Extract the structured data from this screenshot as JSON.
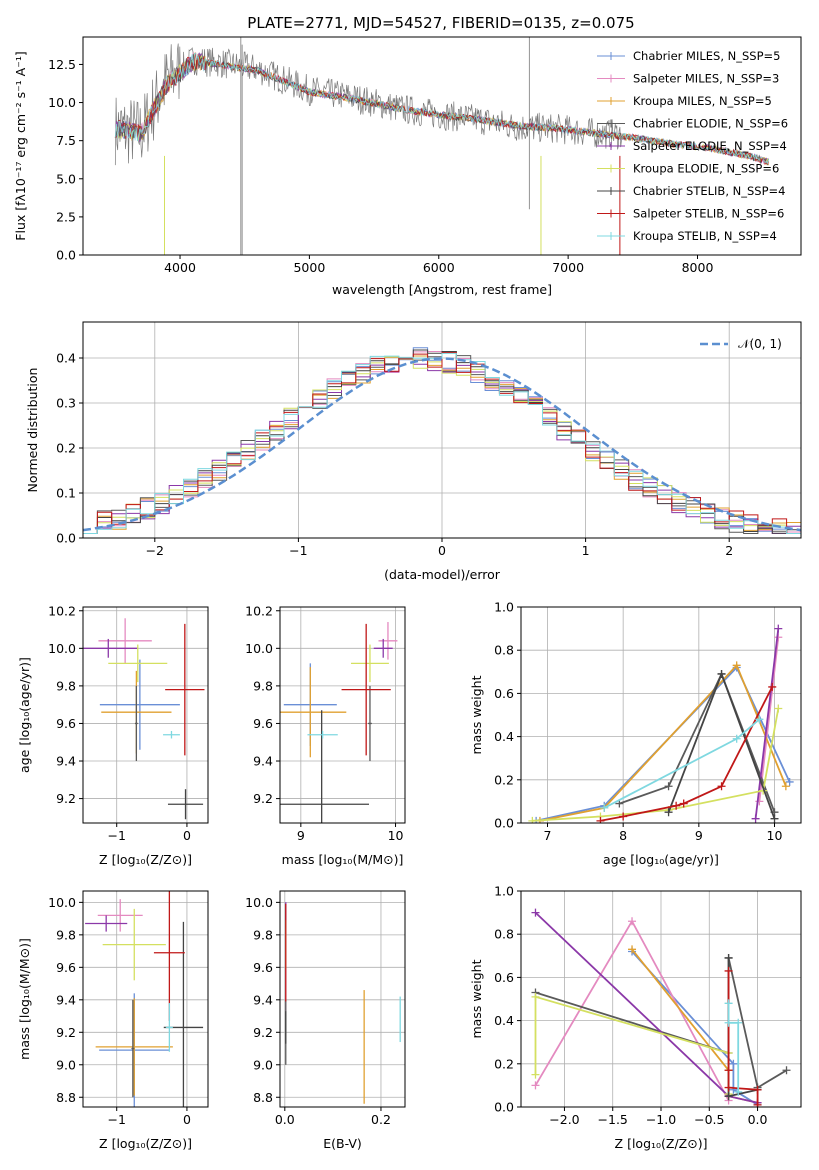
{
  "figure": {
    "title": "PLATE=2771, MJD=54527, FIBERID=0135, z=0.075"
  },
  "colors": {
    "series": [
      "#6a8fd6",
      "#e48ac0",
      "#e0a030",
      "#5a5a5a",
      "#8b38a8",
      "#d4e060",
      "#444444",
      "#c01818",
      "#7fd8e0"
    ],
    "gaussian": "#5b8fd0",
    "grid": "#b0b0b0"
  },
  "chart_data": [
    {
      "id": "spectrum",
      "type": "line",
      "xlabel": "wavelength [Angstrom, rest frame]",
      "ylabel": "Flux [fλ10⁻¹⁷ erg cm⁻² s⁻¹ A⁻¹]",
      "xlim": [
        3250,
        8800
      ],
      "ylim": [
        0,
        14.3
      ],
      "xticks": [
        "4000",
        "5000",
        "6000",
        "7000",
        "8000"
      ],
      "yticks": [
        "0.0",
        "2.5",
        "5.0",
        "7.5",
        "10.0",
        "12.5"
      ],
      "grid": false,
      "legend_position": "upper right",
      "legend": [
        "Chabrier MILES, N_SSP=5",
        "Salpeter MILES, N_SSP=3",
        "Kroupa MILES, N_SSP=5",
        "Chabrier ELODIE, N_SSP=6",
        "Salpeter ELODIE, N_SSP=4",
        "Kroupa ELODIE, N_SSP=6",
        "Chabrier STELIB, N_SSP=4",
        "Salpeter STELIB, N_SSP=6",
        "Kroupa STELIB, N_SSP=4"
      ],
      "data_envelope": {
        "x": [
          3500,
          3700,
          3900,
          4100,
          4300,
          4600,
          5000,
          5300,
          5700,
          6000,
          6300,
          6600,
          6900,
          7200,
          7400
        ],
        "y": [
          8.3,
          8.0,
          11.5,
          12.8,
          12.6,
          12.2,
          10.8,
          10.4,
          9.6,
          9.2,
          8.9,
          8.4,
          8.3,
          8.0,
          7.9
        ]
      },
      "model_envelope": {
        "x": [
          3500,
          3700,
          3900,
          4100,
          4300,
          4600,
          5000,
          5300,
          5700,
          6000,
          6300,
          6600,
          6900,
          7200,
          7500,
          7800,
          8100,
          8400,
          8550
        ],
        "y": [
          8.3,
          8.0,
          11.2,
          12.7,
          12.5,
          12.1,
          10.7,
          10.3,
          9.6,
          9.2,
          8.9,
          8.5,
          8.3,
          8.0,
          7.7,
          7.3,
          7.0,
          6.5,
          6.1
        ]
      }
    },
    {
      "id": "residual_hist",
      "type": "line",
      "xlabel": "(data-model)/error",
      "ylabel": "Normed distribution",
      "xlim": [
        -2.5,
        2.5
      ],
      "ylim": [
        0,
        0.48
      ],
      "xticks": [
        "−2",
        "−1",
        "0",
        "1",
        "2"
      ],
      "yticks": [
        "0.0",
        "0.1",
        "0.2",
        "0.3",
        "0.4"
      ],
      "grid": true,
      "legend_position": "upper right",
      "legend": [
        "𝒩(0, 1)"
      ],
      "bin_width": 0.1
    },
    {
      "id": "z_vs_age",
      "type": "scatter",
      "xlabel": "Z [log₁₀(Z/Z⊙)]",
      "ylabel": "age  [log₁₀(age/yr)]",
      "xlim": [
        -1.48,
        0.3
      ],
      "ylim": [
        9.07,
        10.22
      ],
      "xticks": [
        "−1",
        "0"
      ],
      "yticks": [
        "9.2",
        "9.4",
        "9.6",
        "9.8",
        "10.0",
        "10.2"
      ],
      "grid": true,
      "points": [
        {
          "x": -0.67,
          "y": 9.7,
          "xerr": 0.57,
          "yerr": 0.24
        },
        {
          "x": -0.88,
          "y": 10.04,
          "xerr": 0.38,
          "yerr": 0.12
        },
        {
          "x": -0.72,
          "y": 9.66,
          "xerr": 0.5,
          "yerr": 0.22
        },
        {
          "x": -0.72,
          "y": 9.6,
          "xerr": 0.02,
          "yerr": 0.2
        },
        {
          "x": -1.12,
          "y": 10.0,
          "xerr": 0.42,
          "yerr": 0.05
        },
        {
          "x": -0.7,
          "y": 9.92,
          "xerr": 0.42,
          "yerr": 0.1
        },
        {
          "x": -0.02,
          "y": 9.17,
          "xerr": 0.25,
          "yerr": 0.08
        },
        {
          "x": -0.03,
          "y": 9.78,
          "xerr": 0.28,
          "yerr": 0.35
        },
        {
          "x": -0.22,
          "y": 9.54,
          "xerr": 0.12,
          "yerr": 0.02
        }
      ]
    },
    {
      "id": "mass_vs_age",
      "type": "scatter",
      "xlabel": "mass [log₁₀(M/M⊙)]",
      "ylabel": "",
      "xlim": [
        8.78,
        10.1
      ],
      "ylim": [
        9.07,
        10.22
      ],
      "xticks": [
        "9",
        "10"
      ],
      "yticks": [
        "9.2",
        "9.4",
        "9.6",
        "9.8",
        "10.0",
        "10.2"
      ],
      "grid": true,
      "points": [
        {
          "x": 9.1,
          "y": 9.7,
          "xerr": 0.28,
          "yerr": 0.22
        },
        {
          "x": 9.92,
          "y": 10.04,
          "xerr": 0.1,
          "yerr": 0.1
        },
        {
          "x": 9.1,
          "y": 9.66,
          "xerr": 0.38,
          "yerr": 0.24
        },
        {
          "x": 9.73,
          "y": 9.6,
          "xerr": 0.02,
          "yerr": 0.2
        },
        {
          "x": 9.87,
          "y": 10.0,
          "xerr": 0.1,
          "yerr": 0.05
        },
        {
          "x": 9.73,
          "y": 9.92,
          "xerr": 0.2,
          "yerr": 0.1
        },
        {
          "x": 9.22,
          "y": 9.17,
          "xerr": 0.5,
          "yerr": 0.5
        },
        {
          "x": 9.69,
          "y": 9.78,
          "xerr": 0.26,
          "yerr": 0.35
        },
        {
          "x": 9.23,
          "y": 9.54,
          "xerr": 0.16,
          "yerr": 0.02
        }
      ]
    },
    {
      "id": "age_weights",
      "type": "line",
      "xlabel": "age  [log₁₀(age/yr)]",
      "ylabel": "mass weight",
      "xlim": [
        6.65,
        10.35
      ],
      "ylim": [
        0,
        1.0
      ],
      "xticks": [
        "7",
        "8",
        "9",
        "10"
      ],
      "yticks": [
        "0.0",
        "0.2",
        "0.4",
        "0.6",
        "0.8",
        "1.0"
      ],
      "grid": true,
      "series": [
        {
          "x": [
            6.85,
            7.75,
            9.5,
            10.2
          ],
          "y": [
            0.01,
            0.08,
            0.72,
            0.19
          ]
        },
        {
          "x": [
            9.8,
            10.05
          ],
          "y": [
            0.1,
            0.86
          ]
        },
        {
          "x": [
            6.9,
            7.75,
            9.5,
            10.15
          ],
          "y": [
            0.01,
            0.07,
            0.73,
            0.17
          ]
        },
        {
          "x": [
            7.95,
            8.6,
            9.3,
            10.0
          ],
          "y": [
            0.09,
            0.17,
            0.69,
            0.05
          ]
        },
        {
          "x": [
            9.75,
            10.05
          ],
          "y": [
            0.02,
            0.9
          ]
        },
        {
          "x": [
            6.8,
            7.7,
            8.6,
            9.85,
            10.05
          ],
          "y": [
            0.01,
            0.03,
            0.06,
            0.15,
            0.53
          ]
        },
        {
          "x": [
            8.6,
            9.3,
            10.0
          ],
          "y": [
            0.05,
            0.69,
            0.02
          ]
        },
        {
          "x": [
            7.7,
            8.0,
            8.7,
            8.8,
            9.3,
            9.97
          ],
          "y": [
            0.01,
            0.03,
            0.08,
            0.09,
            0.17,
            0.63
          ]
        },
        {
          "x": [
            7.75,
            9.5,
            9.8
          ],
          "y": [
            0.07,
            0.39,
            0.48
          ]
        }
      ]
    },
    {
      "id": "z_vs_mass",
      "type": "scatter",
      "xlabel": "Z [log₁₀(Z/Z⊙)]",
      "ylabel": "mass [log₁₀(M/M⊙)]",
      "xlim": [
        -1.48,
        0.3
      ],
      "ylim": [
        8.74,
        10.07
      ],
      "xticks": [
        "−1",
        "0"
      ],
      "yticks": [
        "8.8",
        "9.0",
        "9.2",
        "9.4",
        "9.6",
        "9.8",
        "10.0"
      ],
      "grid": true,
      "points": [
        {
          "x": -0.75,
          "y": 9.09,
          "xerr": 0.5,
          "yerr": 0.35
        },
        {
          "x": -0.95,
          "y": 9.92,
          "xerr": 0.32,
          "yerr": 0.1
        },
        {
          "x": -0.75,
          "y": 9.11,
          "xerr": 0.55,
          "yerr": 0.3
        },
        {
          "x": -0.77,
          "y": 9.1,
          "xerr": 0.02,
          "yerr": 0.3
        },
        {
          "x": -1.15,
          "y": 9.87,
          "xerr": 0.3,
          "yerr": 0.05
        },
        {
          "x": -0.75,
          "y": 9.74,
          "xerr": 0.45,
          "yerr": 0.22
        },
        {
          "x": -0.05,
          "y": 9.23,
          "xerr": 0.28,
          "yerr": 0.65
        },
        {
          "x": -0.25,
          "y": 9.69,
          "xerr": 0.22,
          "yerr": 0.42
        },
        {
          "x": -0.25,
          "y": 9.23,
          "xerr": 0.05,
          "yerr": 0.15
        }
      ]
    },
    {
      "id": "ebv_vs_mass",
      "type": "scatter",
      "xlabel": "E(B-V)",
      "ylabel": "",
      "xlim": [
        -0.01,
        0.25
      ],
      "ylim": [
        8.74,
        10.07
      ],
      "xticks": [
        "0.0",
        "0.2"
      ],
      "yticks": [
        "8.8",
        "9.0",
        "9.2",
        "9.4",
        "9.6",
        "9.8",
        "10.0"
      ],
      "grid": true,
      "points": [
        {
          "x": 0.002,
          "y": 9.9,
          "xerr": 0.0,
          "yerr": 0.1
        },
        {
          "x": 0.002,
          "y": 9.65,
          "xerr": 0.0,
          "yerr": 0.35
        },
        {
          "x": 0.165,
          "y": 9.11,
          "xerr": 0.0,
          "yerr": 0.35
        },
        {
          "x": 0.002,
          "y": 9.2,
          "xerr": 0.0,
          "yerr": 0.2
        },
        {
          "x": 0.002,
          "y": 9.92,
          "xerr": 0.0,
          "yerr": 0.08
        },
        {
          "x": 0.002,
          "y": 9.74,
          "xerr": 0.0,
          "yerr": 0.15
        },
        {
          "x": 0.002,
          "y": 9.23,
          "xerr": 0.0,
          "yerr": 0.1
        },
        {
          "x": 0.002,
          "y": 9.69,
          "xerr": 0.0,
          "yerr": 0.3
        },
        {
          "x": 0.24,
          "y": 9.28,
          "xerr": 0.0,
          "yerr": 0.14
        }
      ]
    },
    {
      "id": "metal_weights",
      "type": "line",
      "xlabel": "Z [log₁₀(Z/Z⊙)]",
      "ylabel": "mass weight",
      "xlim": [
        -2.45,
        0.45
      ],
      "ylim": [
        0,
        1.0
      ],
      "xticks": [
        "−2.0",
        "−1.5",
        "−1.0",
        "−0.5",
        "0.0"
      ],
      "yticks": [
        "0.0",
        "0.2",
        "0.4",
        "0.6",
        "0.8",
        "1.0"
      ],
      "grid": true,
      "series": [
        {
          "x": [
            -1.3,
            -0.25,
            -0.25,
            0.0
          ],
          "y": [
            0.72,
            0.2,
            0.08,
            0.01
          ]
        },
        {
          "x": [
            -2.3,
            -1.3,
            -0.3
          ],
          "y": [
            0.1,
            0.86,
            0.03
          ]
        },
        {
          "x": [
            -1.3,
            -0.3,
            -0.3,
            0.0
          ],
          "y": [
            0.73,
            0.17,
            0.05,
            0.02
          ]
        },
        {
          "x": [
            -2.3,
            -0.3,
            -0.3,
            0.0,
            0.3
          ],
          "y": [
            0.53,
            0.25,
            0.69,
            0.09,
            0.17
          ]
        },
        {
          "x": [
            -2.3,
            -0.3,
            0.0
          ],
          "y": [
            0.9,
            0.05,
            0.02
          ]
        },
        {
          "x": [
            -2.3,
            -2.3,
            -0.3,
            -0.3
          ],
          "y": [
            0.15,
            0.51,
            0.25,
            0.06
          ]
        },
        {
          "x": [
            -0.3,
            -0.3,
            0.0
          ],
          "y": [
            0.69,
            0.05,
            0.08
          ]
        },
        {
          "x": [
            -0.3,
            -0.3,
            -0.3,
            0.0,
            0.0
          ],
          "y": [
            0.63,
            0.17,
            0.09,
            0.08,
            0.01
          ]
        },
        {
          "x": [
            -0.3,
            -0.3,
            -0.2,
            -0.2
          ],
          "y": [
            0.48,
            0.39,
            0.39,
            0.07
          ]
        }
      ]
    }
  ]
}
